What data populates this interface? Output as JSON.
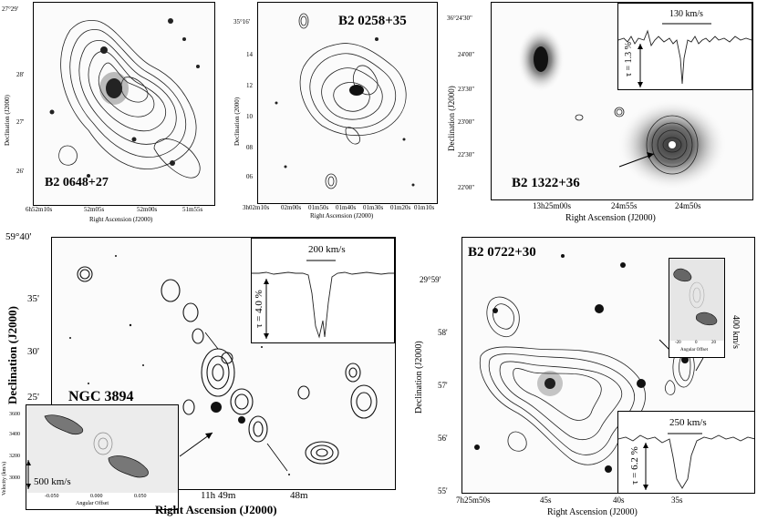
{
  "panels": {
    "b2_0648": {
      "name": "B2 0648+27",
      "xlabel": "Right Ascension (J2000)",
      "ylabel": "Declination (J2000)",
      "yticks": [
        "27°29'",
        "28'",
        "27'",
        "26'"
      ],
      "xticks": [
        "6h52m10s",
        "52m05s",
        "52m00s",
        "51m55s"
      ]
    },
    "b2_0258": {
      "name": "B2 0258+35",
      "xlabel": "Right Ascension (J2000)",
      "ylabel": "Declination (2000)",
      "yticks": [
        "35°16'",
        "14",
        "12",
        "10",
        "08",
        "06"
      ],
      "xticks": [
        "3h02m10s",
        "02m00s",
        "01m50s",
        "01m40s",
        "01m30s",
        "01m20s",
        "01m10s"
      ]
    },
    "b2_1322": {
      "name": "B2 1322+36",
      "xlabel": "Right Ascension (J2000)",
      "ylabel": "Declination (J2000)",
      "yticks": [
        "36°24'30\"",
        "24'00\"",
        "23'30\"",
        "23'00\"",
        "22'30\"",
        "22'00\""
      ],
      "xticks": [
        "13h25m00s",
        "24m55s",
        "24m50s"
      ],
      "inset": {
        "velocity": "130 km/s",
        "tau": "τ = 1.3 %"
      }
    },
    "ngc3894": {
      "name": "NGC 3894",
      "xlabel": "Right Ascension (J2000)",
      "ylabel": "Declination (J2000)",
      "yticks": [
        "59°40'",
        "35'",
        "30'",
        "25'"
      ],
      "xticks": [
        "11h 49m",
        "48m"
      ],
      "spectrum": {
        "velocity": "200 km/s",
        "tau": "τ = 4.0 %"
      },
      "pv": {
        "velocity": "500 km/s",
        "ylabel": "Velocity (km/s)",
        "xlabel": "Angular Offset",
        "yticks": [
          "3600",
          "3400",
          "3200",
          "3000"
        ],
        "xticks": [
          "-0.050",
          "0.000",
          "0.050"
        ]
      }
    },
    "b2_0722": {
      "name": "B2 0722+30",
      "xlabel": "Right Ascension (J2000)",
      "ylabel": "Declination (J2000)",
      "yticks": [
        "29°59'",
        "58'",
        "57'",
        "56'",
        "55'"
      ],
      "xticks": [
        "7h25m50s",
        "45s",
        "40s",
        "35s"
      ],
      "spectrum": {
        "velocity": "250 km/s",
        "tau": "τ = 6.2 %"
      },
      "pv": {
        "velocity": "400 km/s",
        "xlabel": "Angular Offset",
        "xticks": [
          "-20",
          "0",
          "20"
        ]
      }
    }
  }
}
